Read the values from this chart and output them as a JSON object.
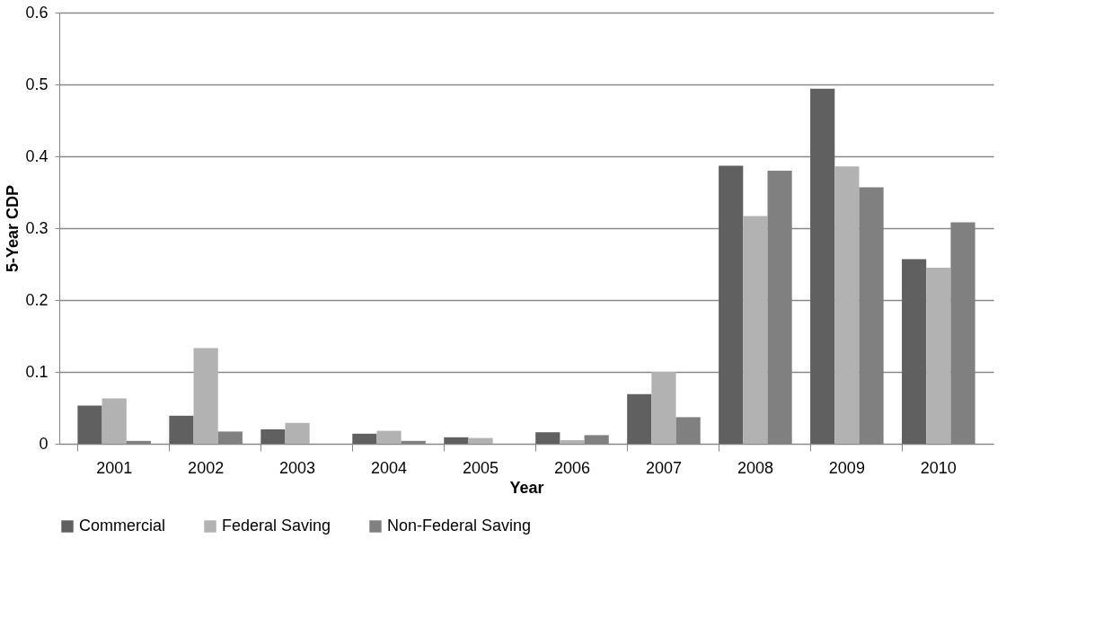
{
  "chart_data": {
    "type": "bar",
    "xlabel": "Year",
    "ylabel": "5-Year CDP",
    "categories": [
      "2001",
      "2002",
      "2003",
      "2004",
      "2005",
      "2006",
      "2007",
      "2008",
      "2009",
      "2010"
    ],
    "series": [
      {
        "name": "Commercial",
        "color": "#606060",
        "values": [
          0.053,
          0.039,
          0.02,
          0.014,
          0.009,
          0.016,
          0.069,
          0.387,
          0.494,
          0.257
        ]
      },
      {
        "name": "Federal Saving",
        "color": "#b2b2b2",
        "values": [
          0.063,
          0.133,
          0.029,
          0.018,
          0.008,
          0.005,
          0.1,
          0.317,
          0.386,
          0.245
        ]
      },
      {
        "name": "Non-Federal Saving",
        "color": "#808080",
        "values": [
          0.004,
          0.017,
          0,
          0.004,
          0,
          0.012,
          0.037,
          0.38,
          0.357,
          0.308
        ]
      }
    ],
    "ylim": [
      0,
      0.6
    ],
    "yticks": [
      0,
      0.1,
      0.2,
      0.3,
      0.4,
      0.5,
      0.6
    ],
    "grid": "y",
    "legend": "bottom"
  }
}
